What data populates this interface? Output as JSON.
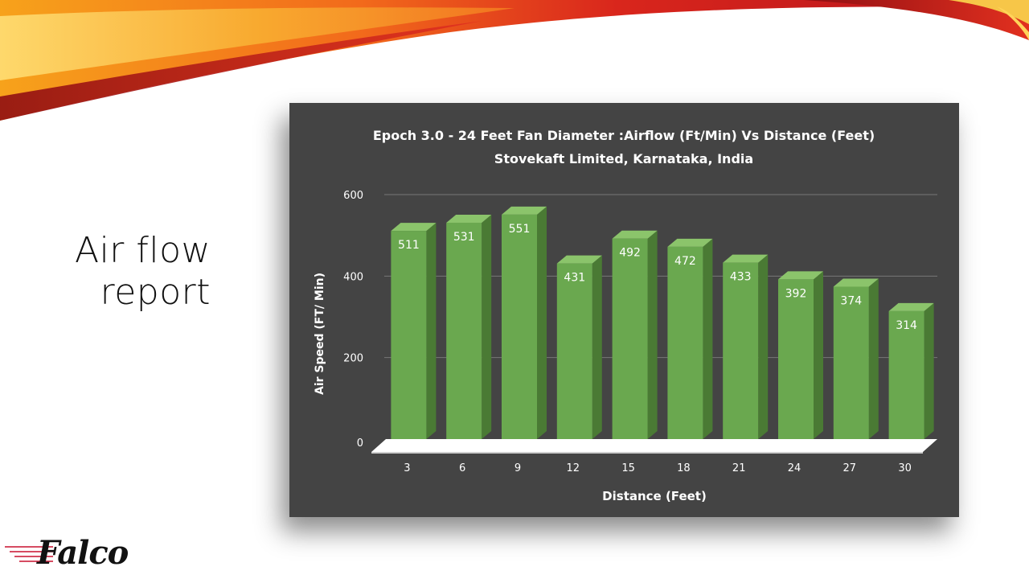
{
  "slide": {
    "title_line1": "Air flow",
    "title_line2": "report",
    "logo_text": "Falco"
  },
  "colors": {
    "panel_bg": "#444444",
    "bar_front": "#6aa84f",
    "bar_top": "#8bc46b",
    "bar_side": "#4a7a34",
    "grid": "#777777",
    "text": "#ffffff"
  },
  "chart_data": {
    "type": "bar",
    "title": "Epoch 3.0 - 24 Feet Fan Diameter :Airflow (Ft/Min) Vs Distance (Feet)",
    "subtitle": "Stovekaft Limited, Karnataka, India",
    "xlabel": "Distance (Feet)",
    "ylabel": "Air Speed (FT/ Min)",
    "categories": [
      "3",
      "6",
      "9",
      "12",
      "15",
      "18",
      "21",
      "24",
      "27",
      "30"
    ],
    "values": [
      511,
      531,
      551,
      431,
      492,
      472,
      433,
      392,
      374,
      314
    ],
    "ylim": [
      0,
      600
    ],
    "yticks": [
      "0",
      "200",
      "400",
      "600"
    ],
    "grid": true,
    "legend": "none",
    "style": "3d-bar"
  }
}
